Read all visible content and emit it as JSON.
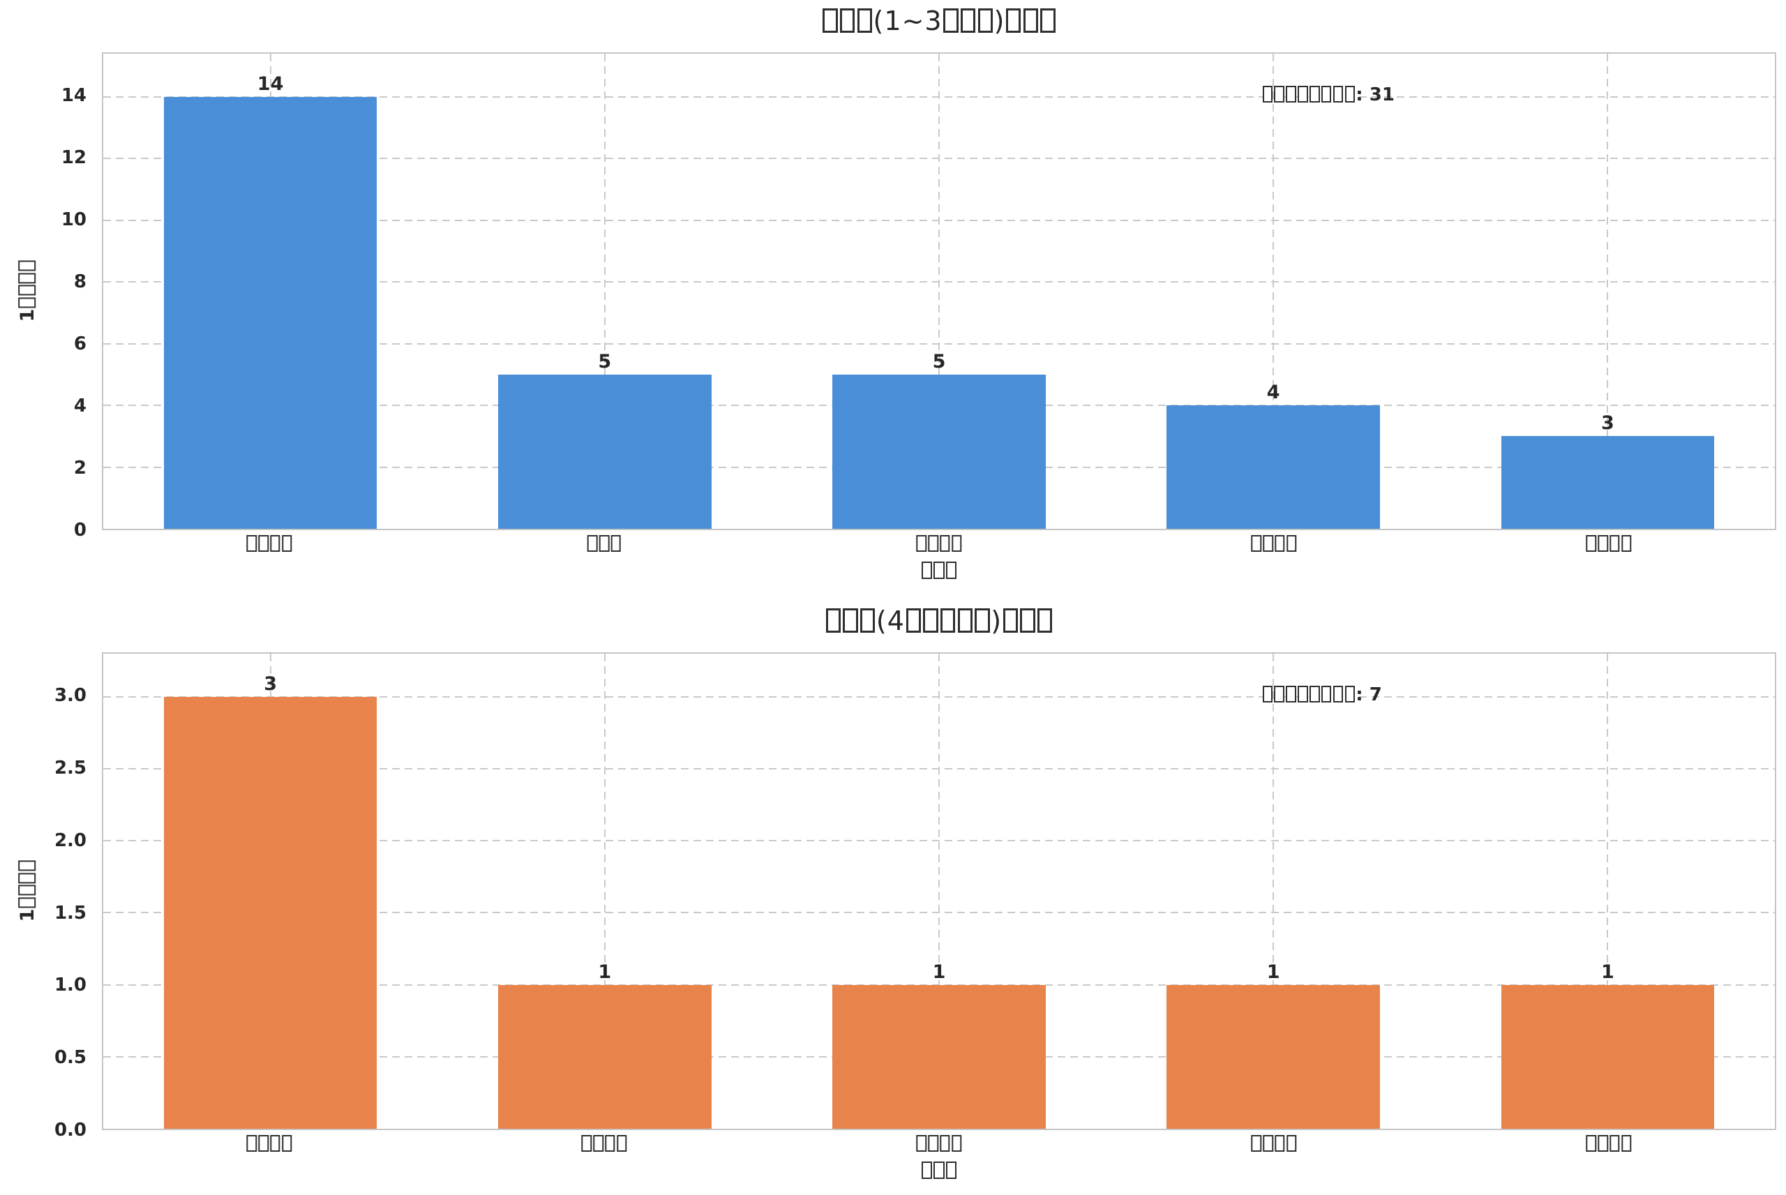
{
  "figure": {
    "background": "#ffffff",
    "text_color": "#262626",
    "grid_color": "#c9c9c9",
    "spine_color": "#c5c5c5"
  },
  "chart_data": [
    {
      "type": "bar",
      "title": "□□□(1~3□□□)□□□",
      "xlabel": "□□□",
      "ylabel": "1□□□□",
      "annotation": "□□□□□□□□: 31",
      "annotation_total": 31,
      "categories": [
        "□□□□",
        "□□□",
        "□□□□",
        "□□□□",
        "□□□□"
      ],
      "values": [
        14,
        5,
        5,
        4,
        3
      ],
      "bar_labels": [
        "14",
        "5",
        "5",
        "4",
        "3"
      ],
      "yticks": [
        "0",
        "2",
        "4",
        "6",
        "8",
        "10",
        "12",
        "14"
      ],
      "ytick_values": [
        0,
        2,
        4,
        6,
        8,
        10,
        12,
        14
      ],
      "ylim": [
        0,
        15.4
      ],
      "bar_color": "#4a8ed8",
      "grid": "dashed-both-axes",
      "legend": "none"
    },
    {
      "type": "bar",
      "title": "□□□(4□□□□□)□□□",
      "xlabel": "□□□",
      "ylabel": "1□□□□",
      "annotation": "□□□□□□□□: 7",
      "annotation_total": 7,
      "categories": [
        "□□□□",
        "□□□□",
        "□□□□",
        "□□□□",
        "□□□□"
      ],
      "values": [
        3,
        1,
        1,
        1,
        1
      ],
      "bar_labels": [
        "3",
        "1",
        "1",
        "1",
        "1"
      ],
      "yticks": [
        "0.0",
        "0.5",
        "1.0",
        "1.5",
        "2.0",
        "2.5",
        "3.0"
      ],
      "ytick_values": [
        0,
        0.5,
        1,
        1.5,
        2,
        2.5,
        3
      ],
      "ylim": [
        0,
        3.3
      ],
      "bar_color": "#e8834b",
      "grid": "dashed-both-axes",
      "legend": "none"
    }
  ]
}
